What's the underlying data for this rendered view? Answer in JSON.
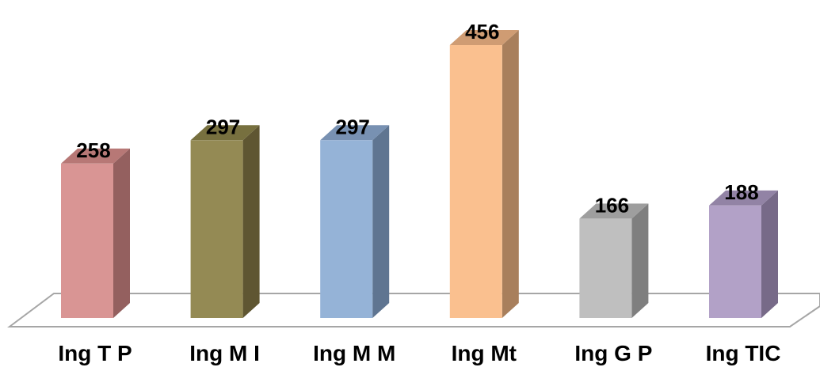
{
  "chart_data": {
    "type": "bar",
    "style": "3d-column",
    "categories": [
      "Ing T P",
      "Ing M I",
      "Ing M M",
      "Ing Mt",
      "Ing G P",
      "Ing TIC"
    ],
    "values": [
      258,
      297,
      297,
      456,
      166,
      188
    ],
    "data_labels": [
      "258",
      "297",
      "297",
      "456",
      "166",
      "188"
    ],
    "title": "",
    "xlabel": "",
    "ylabel": "",
    "ylim": [
      0,
      456
    ],
    "grid": false,
    "legend": "none",
    "colors": {
      "front": [
        "#d99594",
        "#948a54",
        "#95b3d7",
        "#fac08f",
        "#bfbfbf",
        "#b2a1c7"
      ],
      "side": [
        "#94605f",
        "#5f5632",
        "#5f7591",
        "#a87f5c",
        "#7f7f7f",
        "#776a88"
      ],
      "top": [
        "#b77876",
        "#77703f",
        "#7891b2",
        "#cf9c73",
        "#9e9e9e",
        "#9283a5"
      ],
      "floor_stroke": "#a6a6a6"
    }
  }
}
